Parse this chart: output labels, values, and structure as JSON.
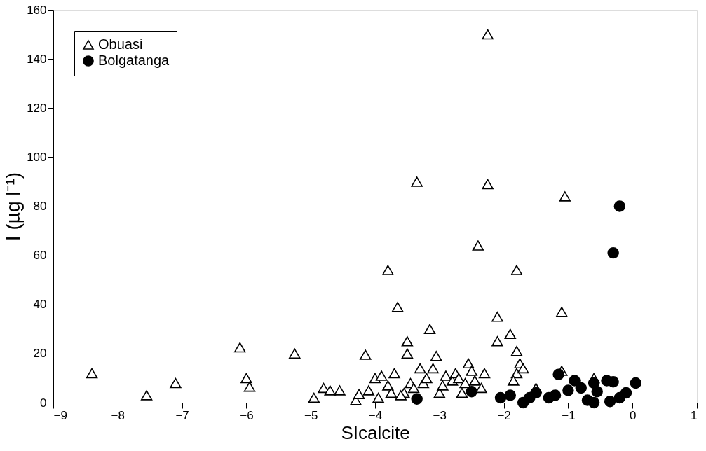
{
  "chart_data": {
    "type": "scatter",
    "xlabel": "SIcalcite",
    "ylabel": "I (µg l⁻¹)",
    "xlim": [
      -9,
      1
    ],
    "xticks": [
      -9,
      -8,
      -7,
      -6,
      -5,
      -4,
      -3,
      -2,
      -1,
      0,
      1
    ],
    "ylim": [
      0,
      160
    ],
    "yticks": [
      0,
      20,
      40,
      60,
      80,
      100,
      120,
      140,
      160
    ],
    "grid": false,
    "legend": "top left",
    "series": [
      {
        "name": "Obuasi",
        "color": "#000000",
        "marker": "triangle",
        "x": [
          -8.4,
          -7.55,
          -7.1,
          -6.1,
          -6.0,
          -5.95,
          -5.25,
          -4.95,
          -4.8,
          -4.7,
          -4.55,
          -4.3,
          -4.25,
          -4.15,
          -4.1,
          -4.0,
          -3.9,
          -3.8,
          -3.8,
          -3.75,
          -3.7,
          -3.65,
          -3.55,
          -3.5,
          -3.5,
          -3.45,
          -3.4,
          -3.35,
          -3.3,
          -3.25,
          -3.2,
          -3.15,
          -3.1,
          -3.05,
          -3.0,
          -2.95,
          -2.9,
          -2.8,
          -2.75,
          -2.7,
          -2.6,
          -2.55,
          -2.5,
          -2.45,
          -2.4,
          -2.35,
          -2.3,
          -2.25,
          -2.25,
          -2.1,
          -2.1,
          -1.9,
          -1.8,
          -1.8,
          -1.75,
          -1.8,
          -1.7,
          -1.85,
          -1.1,
          -1.05,
          -1.1,
          -0.6,
          -1.5,
          -3.6,
          -2.65,
          -3.95
        ],
        "values": [
          12,
          3,
          8,
          22.5,
          10,
          6.5,
          20,
          2,
          6,
          5,
          5,
          1,
          3.5,
          19.5,
          5,
          10,
          11,
          54,
          7,
          4,
          12,
          39,
          4,
          25,
          20,
          8,
          6,
          90,
          14,
          8,
          10,
          30,
          14,
          19,
          4,
          7,
          11,
          9,
          12,
          10,
          8,
          16,
          13,
          9,
          64,
          6,
          12,
          150,
          89,
          35,
          25,
          28,
          54,
          21,
          16,
          12,
          14,
          9,
          37,
          84,
          13,
          10,
          6,
          3,
          4,
          2
        ]
      },
      {
        "name": "Bolgatanga",
        "color": "#000000",
        "marker": "circle",
        "x": [
          -0.2,
          -0.3,
          -1.15,
          -3.35,
          -2.5,
          -1.9,
          -1.7,
          -1.5,
          -1.3,
          -1.0,
          -0.9,
          -0.7,
          -0.6,
          -0.4,
          -0.3,
          -0.2,
          0.05,
          -0.1,
          -0.6,
          -1.6,
          -2.05,
          -1.2,
          -0.8,
          -0.35,
          -0.55
        ],
        "values": [
          80,
          61,
          11.5,
          1.5,
          4.5,
          3,
          0,
          4,
          2,
          5,
          9,
          1,
          8,
          9,
          8.5,
          2,
          8,
          4,
          0,
          2,
          2,
          3,
          6,
          0.5,
          4.5
        ]
      }
    ]
  }
}
